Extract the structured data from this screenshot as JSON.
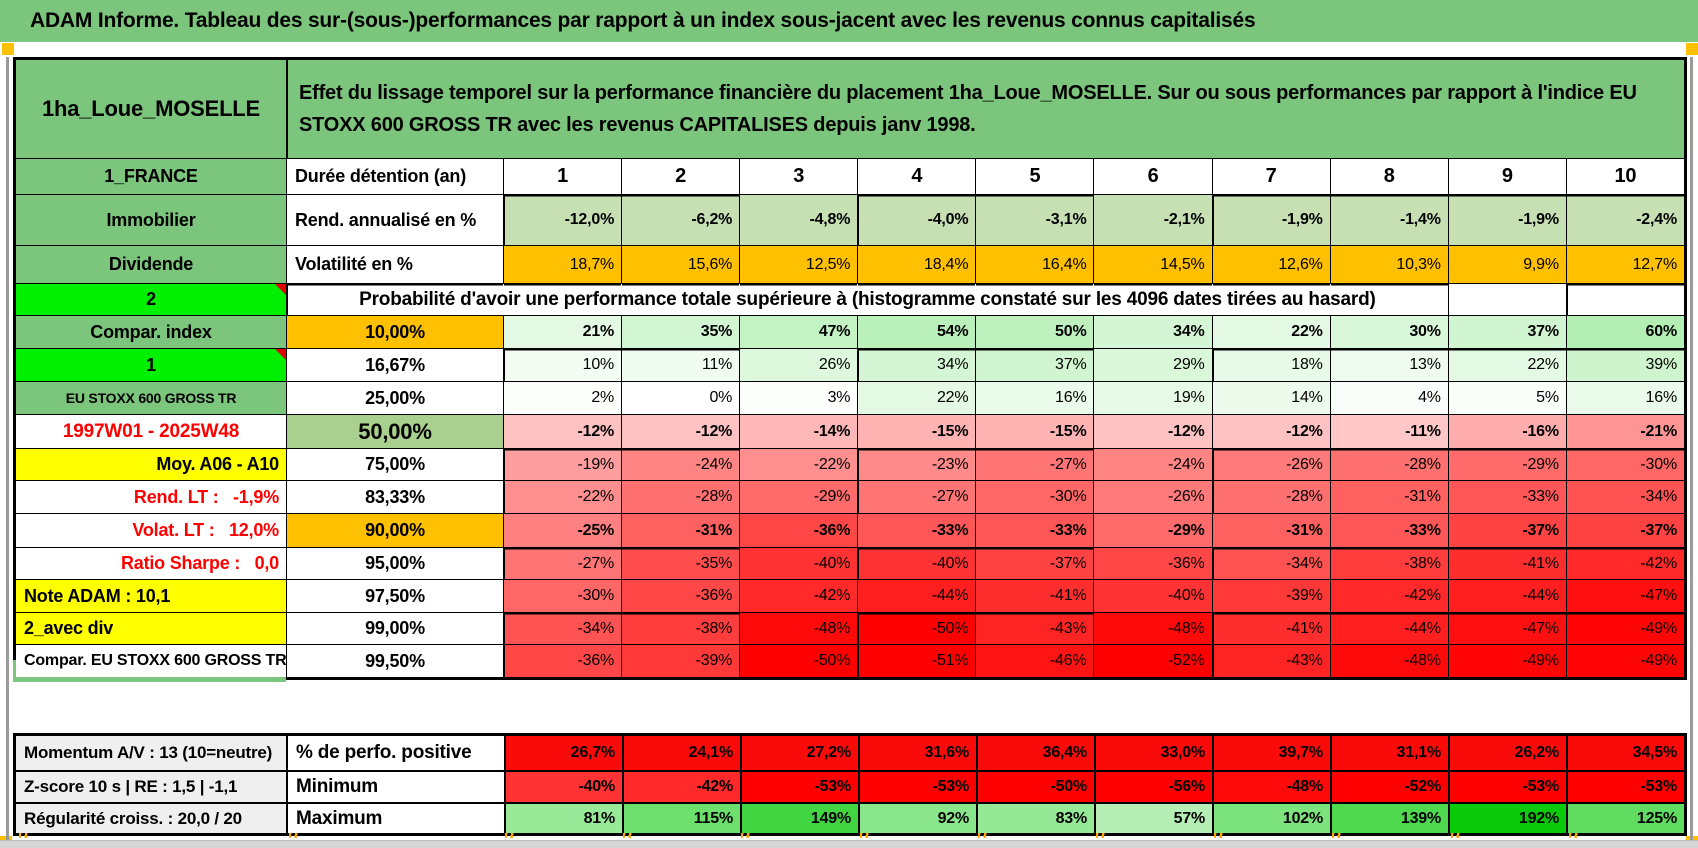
{
  "page": {
    "title": "ADAM Informe. Tableau des sur-(sous-)performances par rapport à un index sous-jacent avec les revenus connus capitalisés"
  },
  "header": {
    "portfolio": "1ha_Loue_MOSELLE",
    "description": "Effet du lissage temporel sur la performance financière du placement 1ha_Loue_MOSELLE. Sur ou sous performances par rapport à l'indice EU STOXX 600 GROSS TR avec les revenus CAPITALISES depuis janv 1998."
  },
  "columns": [
    "1",
    "2",
    "3",
    "4",
    "5",
    "6",
    "7",
    "8",
    "9",
    "10"
  ],
  "main_rows": [
    {
      "left": "1_FRANCE",
      "left_style": "green",
      "mid": "Durée détention (an)",
      "mid_style": "plain-left",
      "cells": [
        "1",
        "2",
        "3",
        "4",
        "5",
        "6",
        "7",
        "8",
        "9",
        "10"
      ],
      "cell_style": "colhead",
      "bold": true,
      "thick_bottom": true
    },
    {
      "left": "Immobilier",
      "left_style": "green",
      "mid": "Rend. annualisé en %",
      "mid_style": "plain-left",
      "cells": [
        "-12,0%",
        "-6,2%",
        "-4,8%",
        "-4,0%",
        "-3,1%",
        "-2,1%",
        "-1,9%",
        "-1,4%",
        "-1,9%",
        "-2,4%"
      ],
      "cell_style": "lightgreen",
      "bold": true
    },
    {
      "left": "Dividende",
      "left_style": "green",
      "mid": "Volatilité en %",
      "mid_style": "plain-left",
      "cells": [
        "18,7%",
        "15,6%",
        "12,5%",
        "18,4%",
        "16,4%",
        "14,5%",
        "12,6%",
        "10,3%",
        "9,9%",
        "12,7%"
      ],
      "cell_style": "orange",
      "bold": false,
      "thick_bottom": true
    },
    {
      "left": "2",
      "left_style": "bright",
      "note": true,
      "merged": "Probabilité d'avoir une performance totale supérieure à (histogramme constaté sur les 4096 dates tirées au hasard)",
      "tail_cells": 2
    },
    {
      "left": "Compar. index",
      "left_style": "green",
      "mid": "10,00%",
      "mid_style": "orange",
      "cells": [
        "21%",
        "35%",
        "47%",
        "54%",
        "50%",
        "34%",
        "22%",
        "30%",
        "37%",
        "60%"
      ],
      "cell_style": "scale",
      "bold": true,
      "thick_bottom": true
    },
    {
      "left": "1",
      "left_style": "bright",
      "note": true,
      "mid": "16,67%",
      "mid_style": "plain-center",
      "cells": [
        "10%",
        "11%",
        "26%",
        "34%",
        "37%",
        "29%",
        "18%",
        "13%",
        "22%",
        "39%"
      ],
      "cell_style": "scale",
      "bold": false
    },
    {
      "left": "EU STOXX 600 GROSS TR",
      "left_style": "green-small",
      "mid": "25,00%",
      "mid_style": "plain-center",
      "cells": [
        "2%",
        "0%",
        "3%",
        "22%",
        "16%",
        "19%",
        "14%",
        "4%",
        "5%",
        "16%"
      ],
      "cell_style": "scale",
      "bold": false,
      "thick_bottom": true
    },
    {
      "left": "1997W01 - 2025W48",
      "left_style": "red-center",
      "mid": "50,00%",
      "mid_style": "green-big",
      "cells": [
        "-12%",
        "-12%",
        "-14%",
        "-15%",
        "-15%",
        "-12%",
        "-12%",
        "-11%",
        "-16%",
        "-21%"
      ],
      "cell_style": "scale",
      "bold": true,
      "thick_bottom": true
    },
    {
      "left": "Moy. A06 - A10",
      "left_style": "yellow-right",
      "mid": "75,00%",
      "mid_style": "plain-center",
      "cells": [
        "-19%",
        "-24%",
        "-22%",
        "-23%",
        "-27%",
        "-24%",
        "-26%",
        "-28%",
        "-29%",
        "-30%"
      ],
      "cell_style": "scale",
      "bold": false
    },
    {
      "left": "Rend. LT :   -1,9%",
      "left_style": "red-right",
      "mid": "83,33%",
      "mid_style": "plain-center",
      "cells": [
        "-22%",
        "-28%",
        "-29%",
        "-27%",
        "-30%",
        "-26%",
        "-28%",
        "-31%",
        "-33%",
        "-34%"
      ],
      "cell_style": "scale",
      "bold": false
    },
    {
      "left": "Volat. LT :   12,0%",
      "left_style": "red-right",
      "mid": "90,00%",
      "mid_style": "orange",
      "cells": [
        "-25%",
        "-31%",
        "-36%",
        "-33%",
        "-33%",
        "-29%",
        "-31%",
        "-33%",
        "-37%",
        "-37%"
      ],
      "cell_style": "scale",
      "bold": true,
      "thick_bottom": true
    },
    {
      "left": "Ratio Sharpe :   0,0",
      "left_style": "red-right",
      "mid": "95,00%",
      "mid_style": "plain-center",
      "cells": [
        "-27%",
        "-35%",
        "-40%",
        "-40%",
        "-37%",
        "-36%",
        "-34%",
        "-38%",
        "-41%",
        "-42%"
      ],
      "cell_style": "scale",
      "bold": false
    },
    {
      "left": "Note ADAM : 10,1",
      "left_style": "yellow-left",
      "mid": "97,50%",
      "mid_style": "plain-center",
      "cells": [
        "-30%",
        "-36%",
        "-42%",
        "-44%",
        "-41%",
        "-40%",
        "-39%",
        "-42%",
        "-44%",
        "-47%"
      ],
      "cell_style": "scale",
      "bold": false,
      "thick_bottom": true
    },
    {
      "left": "2_avec div",
      "left_style": "yellow-left",
      "mid": "99,00%",
      "mid_style": "plain-center",
      "cells": [
        "-34%",
        "-38%",
        "-48%",
        "-50%",
        "-43%",
        "-48%",
        "-41%",
        "-44%",
        "-47%",
        "-49%"
      ],
      "cell_style": "scale",
      "bold": false
    },
    {
      "left": "Compar. EU STOXX 600 GROSS TR",
      "left_style": "plain-left-clip",
      "mid": "99,50%",
      "mid_style": "plain-center",
      "cells": [
        "-36%",
        "-39%",
        "-50%",
        "-51%",
        "-46%",
        "-52%",
        "-43%",
        "-48%",
        "-49%",
        "-49%"
      ],
      "cell_style": "scale",
      "bold": false
    }
  ],
  "bottom_rows": [
    {
      "left": "Momentum A/V : 13 (10=neutre)",
      "mid": "% de perfo. positive",
      "cells": [
        "26,7%",
        "24,1%",
        "27,2%",
        "31,6%",
        "36,4%",
        "33,0%",
        "39,7%",
        "31,1%",
        "26,2%",
        "34,5%"
      ],
      "cell_style": "red",
      "bold": true
    },
    {
      "left": "Z-score 10 s | RE : 1,5 | -1,1",
      "mid": "Minimum",
      "cells": [
        "-40%",
        "-42%",
        "-53%",
        "-53%",
        "-50%",
        "-56%",
        "-48%",
        "-52%",
        "-53%",
        "-53%"
      ],
      "cell_style": "scale",
      "bold": true
    },
    {
      "left": "Régularité croiss. : 20,0 / 20",
      "mid": "Maximum",
      "cells": [
        "81%",
        "115%",
        "149%",
        "92%",
        "83%",
        "57%",
        "102%",
        "139%",
        "192%",
        "125%"
      ],
      "cell_style": "scale",
      "bold": true
    }
  ],
  "colors": {
    "sheet_green": "#7CC57C",
    "bright_green": "#00F000",
    "orange": "#FFC000",
    "yellow": "#FFFF00",
    "light_green": "#C6E0B4",
    "mid_green": "#A9D08E",
    "pure_red": "#FB0A0A",
    "red_text": "#FF0000",
    "gray_label": "#EFEFEF",
    "corner_marker": "#FFC000"
  }
}
